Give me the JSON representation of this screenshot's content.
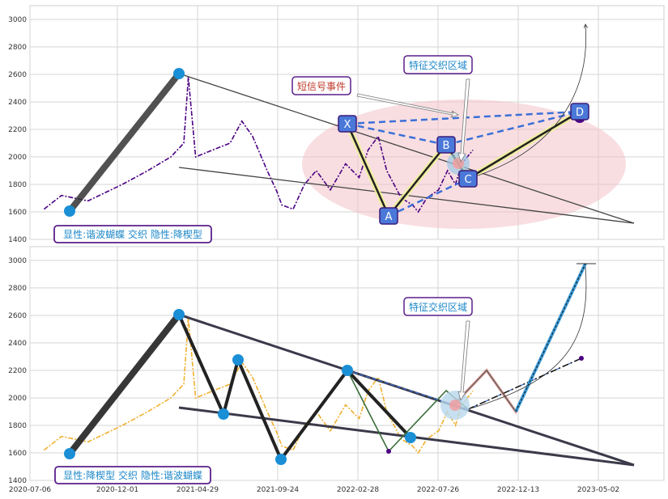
{
  "colors": {
    "top_price": "#4b0082",
    "bottom_price": "#f0b030",
    "pattern_blue": "#3b6fd8",
    "label_border": "#5a1f8a",
    "label_text": "#1e88c8",
    "marker_blue": "#1a8fd6",
    "box_blue": "#4a78d8",
    "zone_pink": "#f2c2c8",
    "signal_red": "#c0392b"
  },
  "x_axis": {
    "tick_labels": [
      "2020-07-06",
      "2020-12-01",
      "2021-04-29",
      "2021-09-24",
      "2022-02-28",
      "2022-07-26",
      "2022-12-13",
      "2023-05-02"
    ]
  },
  "chart_data": [
    {
      "type": "line",
      "panel": "top",
      "ylim": [
        1400,
        3100
      ],
      "yticks": [
        1400,
        1600,
        1800,
        2000,
        2200,
        2400,
        2600,
        2800,
        3000
      ],
      "xlim": [
        "2020-06-20",
        "2023-07-20"
      ],
      "price_series": {
        "x": [
          "2020-07-15",
          "2020-08-15",
          "2020-10-01",
          "2020-12-01",
          "2021-01-15",
          "2021-02-25",
          "2021-03-20",
          "2021-03-28",
          "2021-04-10",
          "2021-05-10",
          "2021-06-10",
          "2021-07-01",
          "2021-07-20",
          "2021-08-15",
          "2021-09-01",
          "2021-09-10",
          "2021-09-30",
          "2021-10-20",
          "2021-11-10",
          "2021-12-05",
          "2022-01-01",
          "2022-01-25",
          "2022-02-10",
          "2022-02-28",
          "2022-03-15",
          "2022-04-10",
          "2022-04-30",
          "2022-05-10",
          "2022-05-25",
          "2022-06-15",
          "2022-07-01",
          "2022-07-15",
          "2022-07-26",
          "2022-08-05",
          "2022-08-15"
        ],
        "y": [
          1620,
          1720,
          1680,
          1800,
          1900,
          2000,
          2100,
          2580,
          2000,
          2050,
          2100,
          2260,
          2150,
          1900,
          1750,
          1650,
          1620,
          1800,
          1900,
          1760,
          1950,
          1850,
          2050,
          2150,
          1900,
          1700,
          1650,
          1600,
          1700,
          1760,
          1900,
          1800,
          1950,
          2000,
          2050
        ]
      },
      "pattern_points": [
        {
          "label": "X",
          "x": "2022-02-28",
          "y": 2230
        },
        {
          "label": "A",
          "x": "2022-05-05",
          "y": 1600
        },
        {
          "label": "B",
          "x": "2022-07-10",
          "y": 2000
        },
        {
          "label": "C",
          "x": "2022-07-25",
          "y": 1850
        },
        {
          "label": "D",
          "x": "2023-02-20",
          "y": 2280
        }
      ],
      "markers": [
        {
          "x": "2020-08-20",
          "y": 1600
        },
        {
          "x": "2021-04-01",
          "y": 2600
        },
        {
          "x": "2023-02-20",
          "y": 2280
        }
      ],
      "text_labels": {
        "explicit_implicit": "显性:谐波蝴蝶 交织 隐性:降楔型",
        "short_signal": "短信号事件",
        "zone": "特征交织区域"
      }
    },
    {
      "type": "line",
      "panel": "bottom",
      "ylim": [
        1400,
        3100
      ],
      "yticks": [
        1400,
        1600,
        1800,
        2000,
        2200,
        2400,
        2600,
        2800,
        3000
      ],
      "xlim": [
        "2020-06-20",
        "2023-07-20"
      ],
      "price_series": {
        "x": [
          "2020-07-15",
          "2020-08-15",
          "2020-10-01",
          "2020-12-01",
          "2021-01-15",
          "2021-02-25",
          "2021-03-20",
          "2021-03-28",
          "2021-04-10",
          "2021-05-10",
          "2021-06-10",
          "2021-07-01",
          "2021-07-20",
          "2021-08-15",
          "2021-09-01",
          "2021-09-10",
          "2021-09-30",
          "2021-10-20",
          "2021-11-10",
          "2021-12-05",
          "2022-01-01",
          "2022-01-25",
          "2022-02-10",
          "2022-02-28",
          "2022-03-15",
          "2022-04-10",
          "2022-04-30",
          "2022-05-10",
          "2022-05-25",
          "2022-06-15",
          "2022-07-01",
          "2022-07-15",
          "2022-07-26",
          "2022-08-05",
          "2022-08-15"
        ],
        "y": [
          1620,
          1720,
          1680,
          1800,
          1900,
          2000,
          2100,
          2580,
          2000,
          2050,
          2100,
          2260,
          2150,
          1900,
          1750,
          1650,
          1620,
          1800,
          1900,
          1760,
          1950,
          1850,
          2050,
          2150,
          1900,
          1700,
          1650,
          1600,
          1700,
          1760,
          1900,
          1800,
          1950,
          2000,
          2050
        ]
      },
      "wedge_points": [
        {
          "x": "2020-08-20",
          "y": 1600
        },
        {
          "x": "2021-04-01",
          "y": 2600
        },
        {
          "x": "2021-06-01",
          "y": 1880
        },
        {
          "x": "2021-07-01",
          "y": 2270
        },
        {
          "x": "2021-09-10",
          "y": 1550
        },
        {
          "x": "2022-02-28",
          "y": 2200
        },
        {
          "x": "2022-05-25",
          "y": 1710
        }
      ],
      "forecast_zigzag": [
        {
          "x": "2022-07-26",
          "y": 1950
        },
        {
          "x": "2022-09-20",
          "y": 2200
        },
        {
          "x": "2022-11-20",
          "y": 1900
        },
        {
          "x": "2023-03-15",
          "y": 2980
        }
      ],
      "text_labels": {
        "explicit_implicit": "显性:降楔型 交织 隐性:谐波蝴蝶",
        "zone": "特征交织区域"
      }
    }
  ]
}
